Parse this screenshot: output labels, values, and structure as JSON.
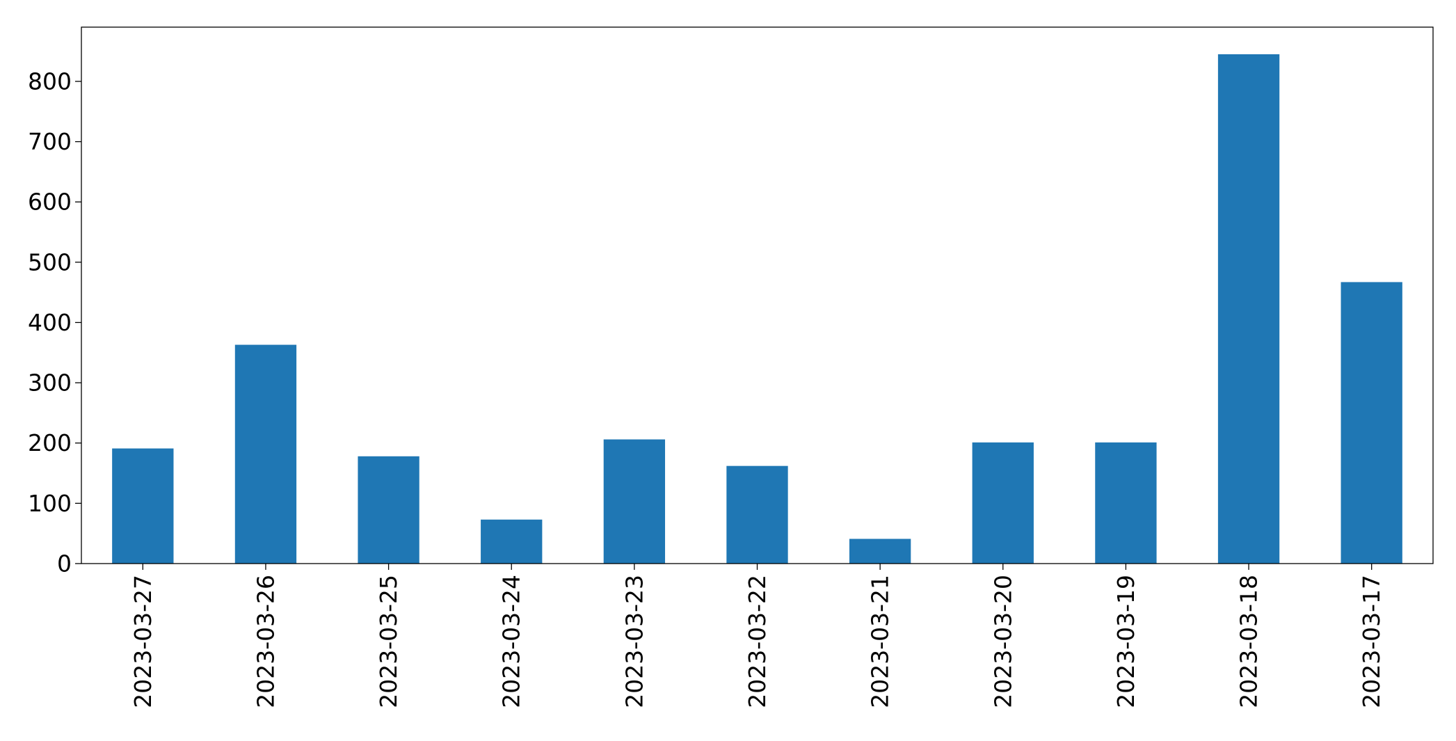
{
  "chart_data": {
    "type": "bar",
    "title": "",
    "xlabel": "",
    "ylabel": "",
    "categories": [
      "2023-03-27",
      "2023-03-26",
      "2023-03-25",
      "2023-03-24",
      "2023-03-23",
      "2023-03-22",
      "2023-03-21",
      "2023-03-20",
      "2023-03-19",
      "2023-03-18",
      "2023-03-17"
    ],
    "values": [
      191,
      363,
      178,
      73,
      206,
      162,
      41,
      201,
      201,
      845,
      467
    ],
    "ylim": [
      0,
      890
    ],
    "yticks": [
      0,
      100,
      200,
      300,
      400,
      500,
      600,
      700,
      800
    ],
    "bar_color": "#1f77b4",
    "grid": false,
    "legend": "none"
  }
}
